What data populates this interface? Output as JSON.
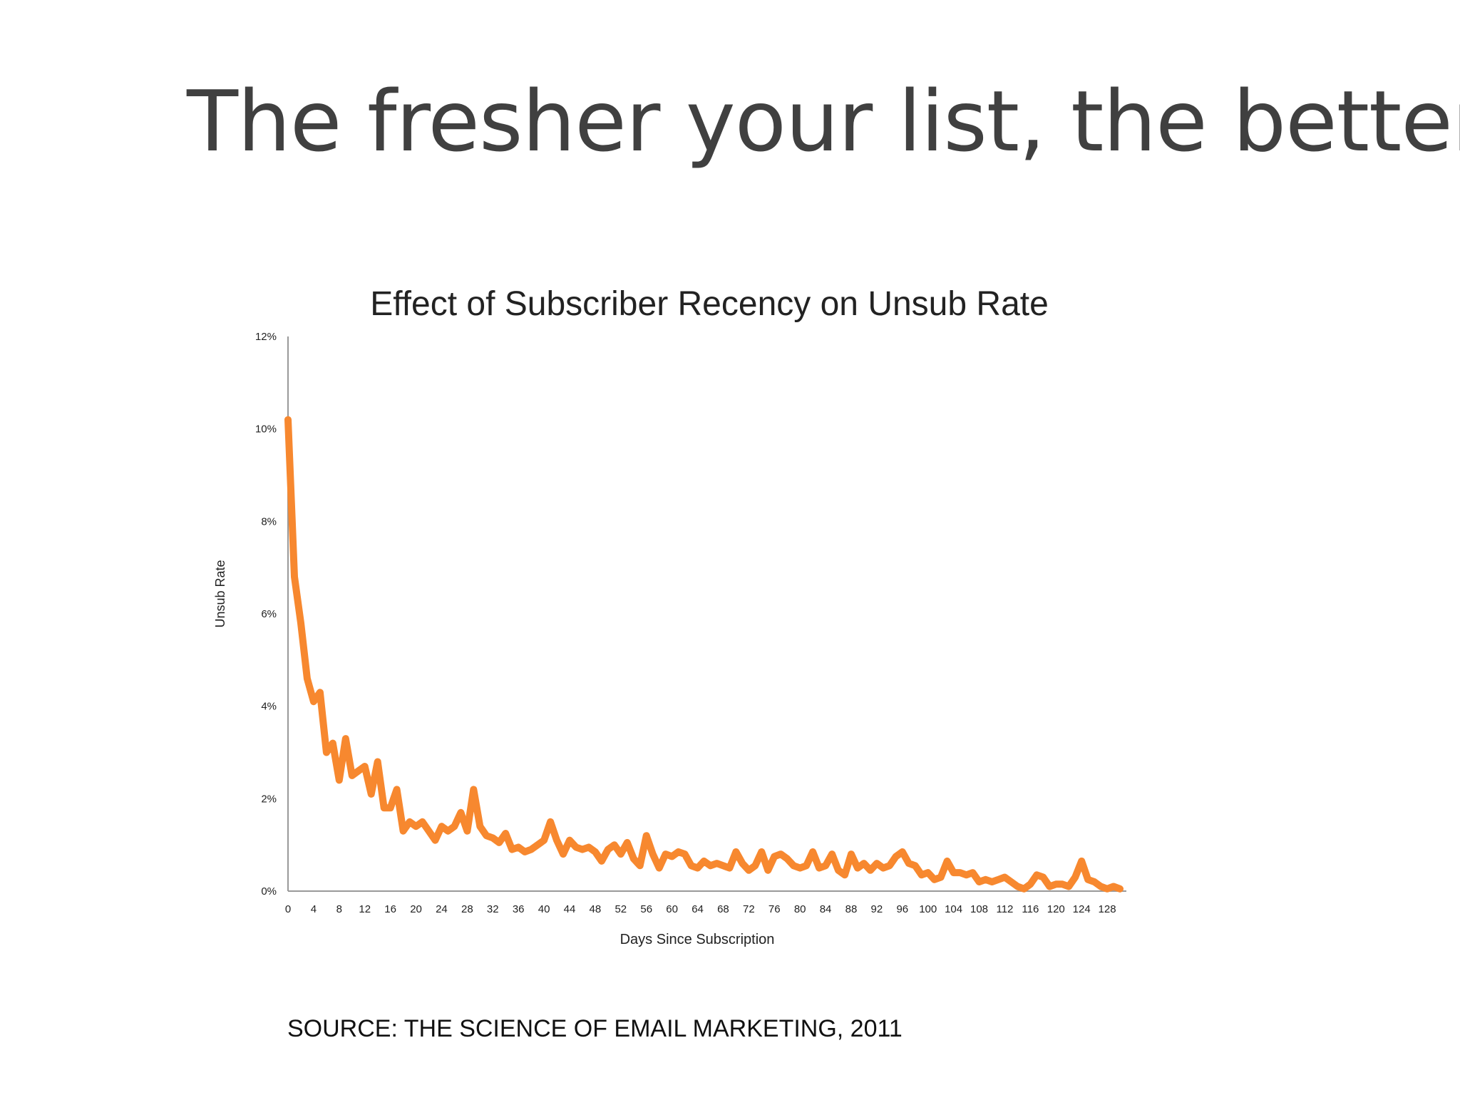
{
  "slide": {
    "title": "The fresher your list, the better!",
    "source": "SOURCE: THE SCIENCE OF EMAIL MARKETING, 2011"
  },
  "chart_data": {
    "type": "line",
    "title": "Effect of Subscriber Recency on Unsub Rate",
    "xlabel": "Days Since Subscription",
    "ylabel": "Unsub Rate",
    "x_ticks": [
      0,
      4,
      8,
      12,
      16,
      20,
      24,
      28,
      32,
      36,
      40,
      44,
      48,
      52,
      56,
      60,
      64,
      68,
      72,
      76,
      80,
      84,
      88,
      92,
      96,
      100,
      104,
      108,
      112,
      116,
      120,
      124,
      128
    ],
    "y_ticks": [
      "0%",
      "2%",
      "4%",
      "6%",
      "8%",
      "10%",
      "12%"
    ],
    "xlim": [
      0,
      131
    ],
    "ylim": [
      0,
      12
    ],
    "grid": false,
    "legend": "none",
    "colors": {
      "line": "#f7882f",
      "axis": "#999999",
      "text": "#222222"
    },
    "series": [
      {
        "color": "#f7882f",
        "x": [
          0,
          1,
          2,
          3,
          4,
          5,
          6,
          7,
          8,
          9,
          10,
          11,
          12,
          13,
          14,
          15,
          16,
          17,
          18,
          19,
          20,
          21,
          22,
          23,
          24,
          25,
          26,
          27,
          28,
          29,
          30,
          31,
          32,
          33,
          34,
          35,
          36,
          37,
          38,
          39,
          40,
          41,
          42,
          43,
          44,
          45,
          46,
          47,
          48,
          49,
          50,
          51,
          52,
          53,
          54,
          55,
          56,
          57,
          58,
          59,
          60,
          61,
          62,
          63,
          64,
          65,
          66,
          67,
          68,
          69,
          70,
          71,
          72,
          73,
          74,
          75,
          76,
          77,
          78,
          79,
          80,
          81,
          82,
          83,
          84,
          85,
          86,
          87,
          88,
          89,
          90,
          91,
          92,
          93,
          94,
          95,
          96,
          97,
          98,
          99,
          100,
          101,
          102,
          103,
          104,
          105,
          106,
          107,
          108,
          109,
          110,
          111,
          112,
          113,
          114,
          115,
          116,
          117,
          118,
          119,
          120,
          121,
          122,
          123,
          124,
          125,
          126,
          127,
          128,
          129,
          130
        ],
        "values": [
          10.2,
          6.8,
          5.8,
          4.6,
          4.1,
          4.3,
          3.0,
          3.2,
          2.4,
          3.3,
          2.5,
          2.6,
          2.7,
          2.1,
          2.8,
          1.8,
          1.8,
          2.2,
          1.3,
          1.5,
          1.4,
          1.5,
          1.3,
          1.1,
          1.4,
          1.3,
          1.4,
          1.7,
          1.3,
          2.2,
          1.4,
          1.2,
          1.15,
          1.05,
          1.25,
          0.9,
          0.95,
          0.85,
          0.9,
          1.0,
          1.1,
          1.5,
          1.1,
          0.8,
          1.1,
          0.95,
          0.9,
          0.95,
          0.85,
          0.65,
          0.9,
          1.0,
          0.8,
          1.05,
          0.7,
          0.55,
          1.2,
          0.8,
          0.5,
          0.8,
          0.75,
          0.85,
          0.8,
          0.55,
          0.5,
          0.65,
          0.55,
          0.6,
          0.55,
          0.5,
          0.85,
          0.6,
          0.45,
          0.55,
          0.85,
          0.45,
          0.75,
          0.8,
          0.7,
          0.55,
          0.5,
          0.55,
          0.85,
          0.5,
          0.55,
          0.8,
          0.45,
          0.35,
          0.8,
          0.5,
          0.6,
          0.45,
          0.6,
          0.5,
          0.55,
          0.75,
          0.85,
          0.6,
          0.55,
          0.35,
          0.4,
          0.25,
          0.3,
          0.65,
          0.4,
          0.4,
          0.35,
          0.4,
          0.2,
          0.25,
          0.2,
          0.25,
          0.3,
          0.2,
          0.1,
          0.05,
          0.15,
          0.35,
          0.3,
          0.1,
          0.15,
          0.15,
          0.1,
          0.3,
          0.65,
          0.25,
          0.2,
          0.1,
          0.05,
          0.1,
          0.05
        ]
      }
    ]
  }
}
